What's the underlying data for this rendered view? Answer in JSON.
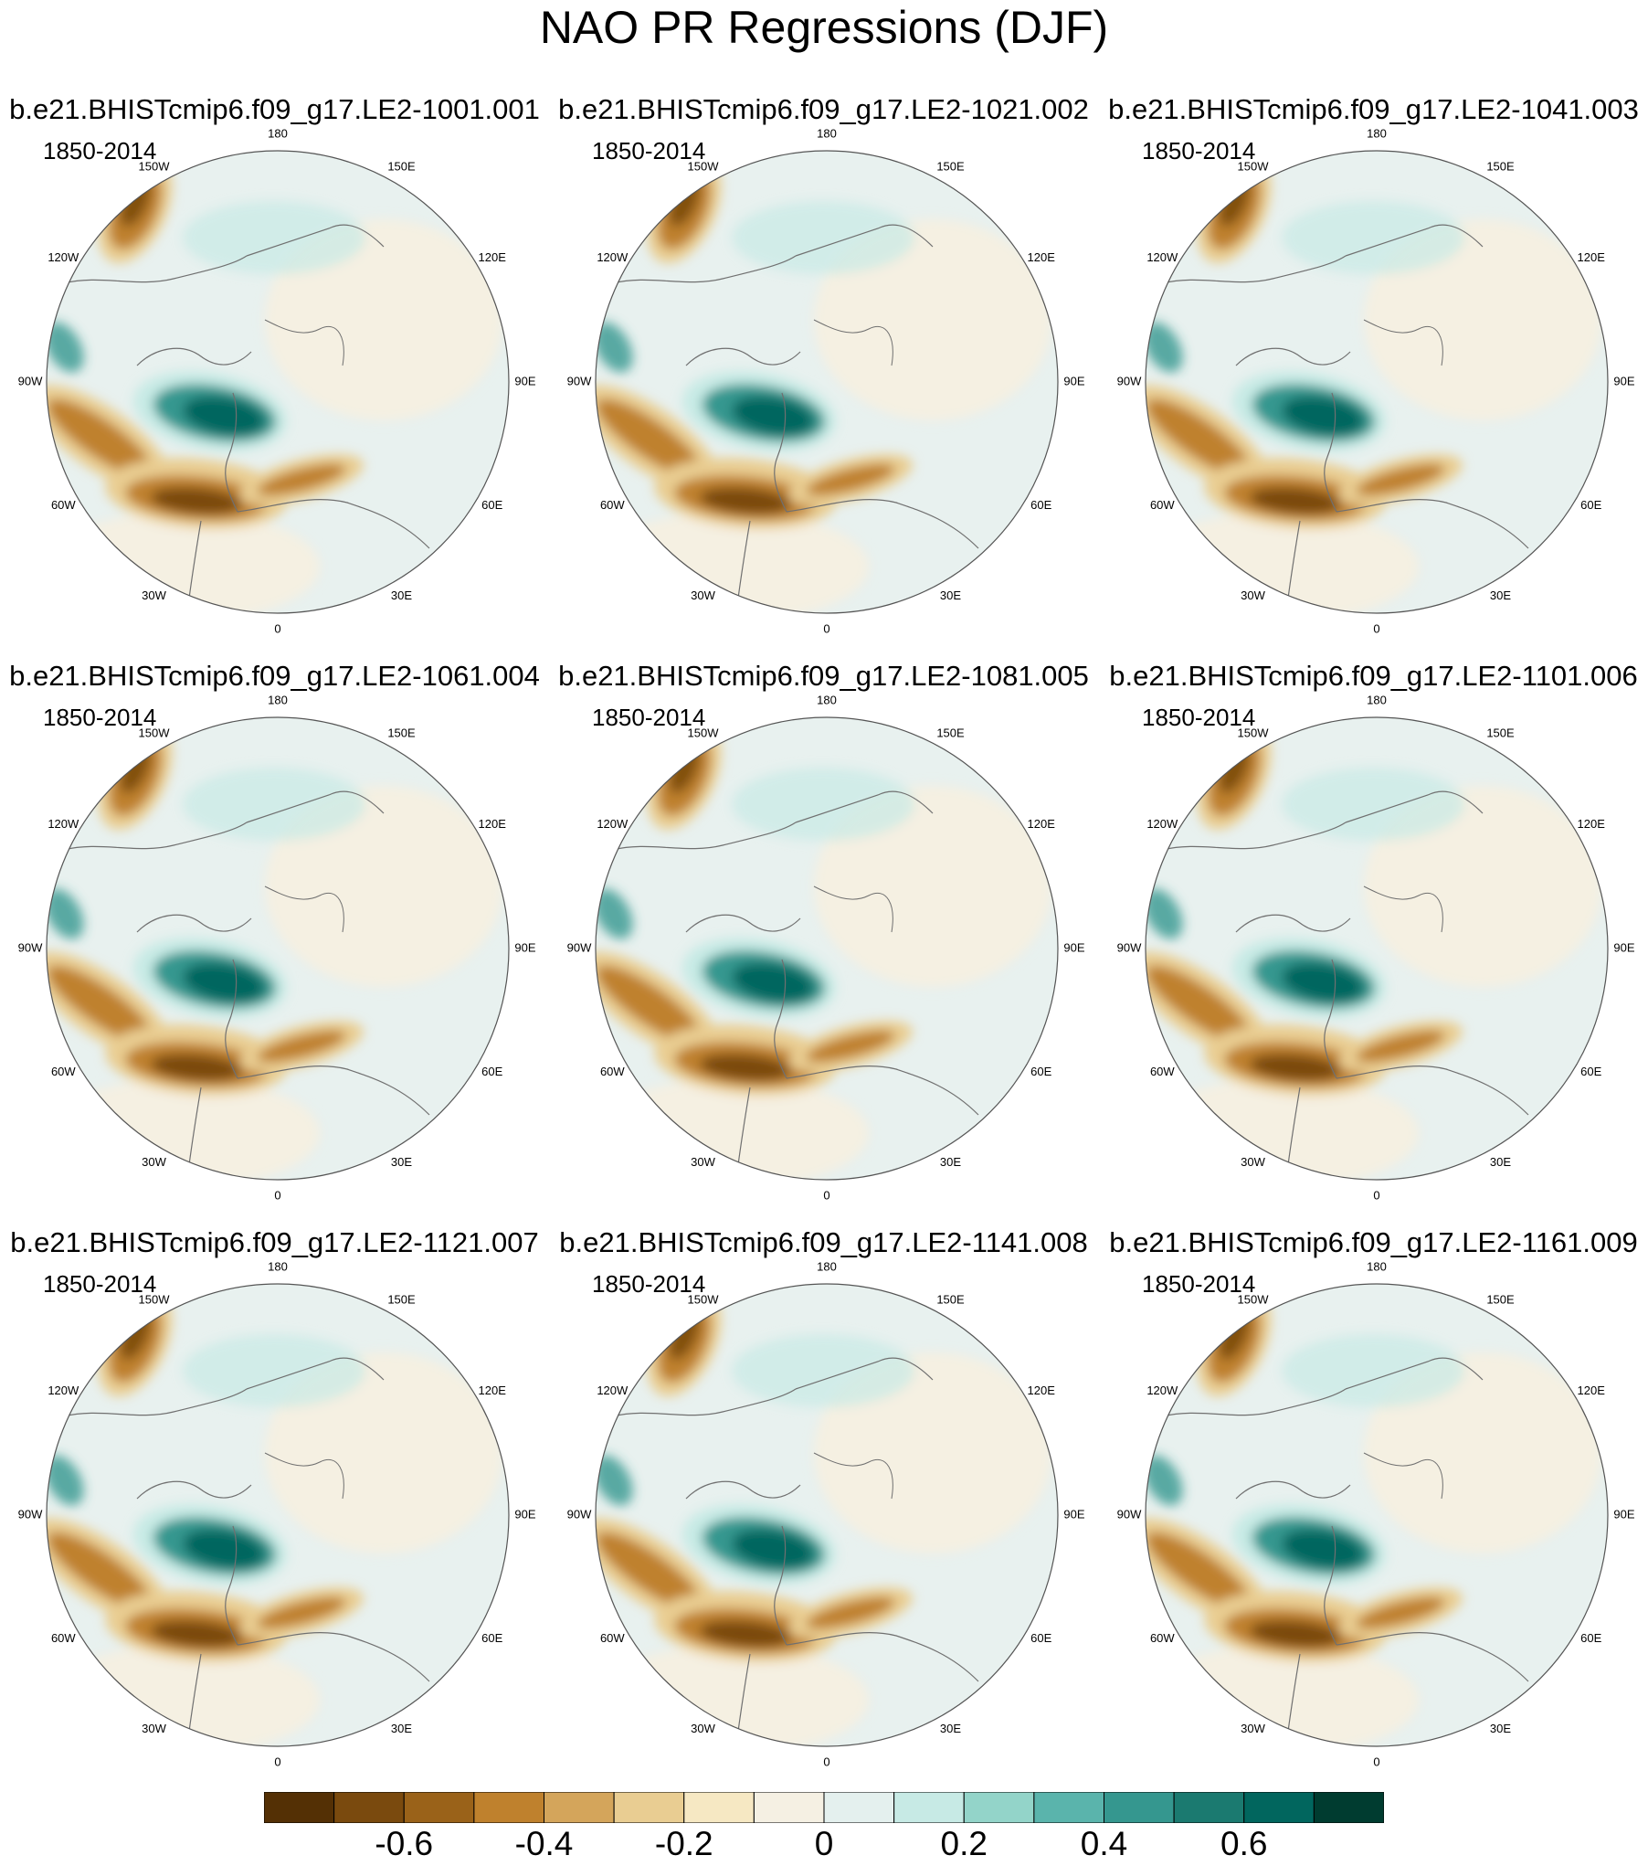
{
  "title": "NAO PR Regressions (DJF)",
  "period_label": "1850-2014",
  "longitude_labels": [
    "180",
    "150E",
    "120E",
    "90E",
    "60E",
    "30E",
    "0",
    "30W",
    "60W",
    "90W",
    "120W",
    "150W"
  ],
  "panels": [
    {
      "title": "b.e21.BHISTcmip6.f09_g17.LE2-1001.001",
      "period": "1850-2014"
    },
    {
      "title": "b.e21.BHISTcmip6.f09_g17.LE2-1021.002",
      "period": "1850-2014"
    },
    {
      "title": "b.e21.BHISTcmip6.f09_g17.LE2-1041.003",
      "period": "1850-2014"
    },
    {
      "title": "b.e21.BHISTcmip6.f09_g17.LE2-1061.004",
      "period": "1850-2014"
    },
    {
      "title": "b.e21.BHISTcmip6.f09_g17.LE2-1081.005",
      "period": "1850-2014"
    },
    {
      "title": "b.e21.BHISTcmip6.f09_g17.LE2-1101.006",
      "period": "1850-2014"
    },
    {
      "title": "b.e21.BHISTcmip6.f09_g17.LE2-1121.007",
      "period": "1850-2014"
    },
    {
      "title": "b.e21.BHISTcmip6.f09_g17.LE2-1141.008",
      "period": "1850-2014"
    },
    {
      "title": "b.e21.BHISTcmip6.f09_g17.LE2-1161.009",
      "period": "1850-2014"
    }
  ],
  "colorbar": {
    "colors": [
      "#543005",
      "#7a4a0e",
      "#9a6219",
      "#bf812d",
      "#d4a55b",
      "#e9cd92",
      "#f6e8c3",
      "#f5f0e3",
      "#e4f0ee",
      "#c7eae5",
      "#93d4c9",
      "#5ab4ac",
      "#35978f",
      "#1b7a70",
      "#01665e",
      "#003c30"
    ],
    "tick_labels": [
      "-0.6",
      "-0.4",
      "-0.2",
      "0",
      "0.2",
      "0.4",
      "0.6"
    ],
    "tick_values": [
      -0.6,
      -0.4,
      -0.2,
      0,
      0.2,
      0.4,
      0.6
    ]
  },
  "map_style": {
    "background": "#e8f1ef",
    "coastline": "#707070",
    "border": "#555555",
    "negative_dark": "#7a4a0e",
    "negative_mid": "#bf812d",
    "negative_light": "#e9cd92",
    "positive_dark": "#01665e",
    "positive_mid": "#35978f",
    "positive_light": "#c7eae5",
    "neutral": "#f6efe0"
  }
}
